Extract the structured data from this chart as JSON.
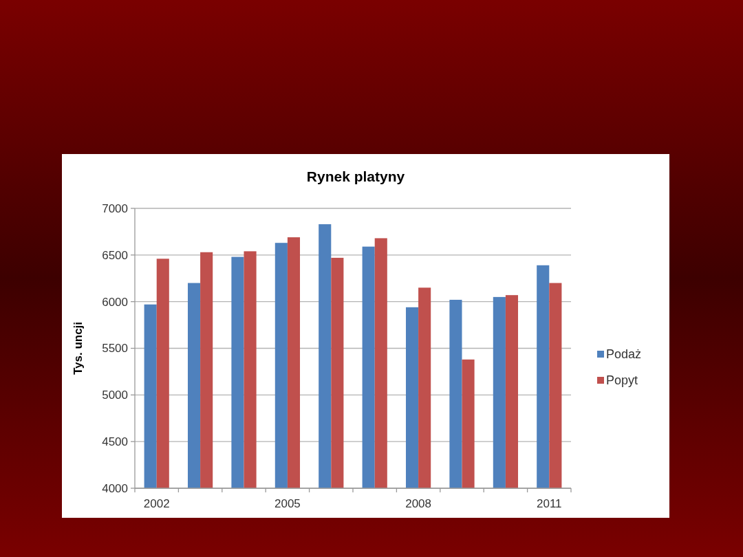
{
  "chart_data": {
    "type": "bar",
    "title": "Rynek platyny",
    "ylabel": "Tys. uncji",
    "categories": [
      "2002",
      null,
      null,
      "2005",
      null,
      null,
      "2008",
      null,
      null,
      "2011"
    ],
    "series": [
      {
        "name": "Podaż",
        "color": "#4f81bd",
        "values": [
          5970,
          6200,
          6480,
          6630,
          6830,
          6590,
          5940,
          6020,
          6050,
          6390
        ]
      },
      {
        "name": "Popyt",
        "color": "#c0504d",
        "values": [
          6460,
          6530,
          6540,
          6690,
          6470,
          6680,
          6150,
          5380,
          6070,
          6200
        ]
      }
    ],
    "ylim": [
      4000,
      7000
    ],
    "yticks": [
      4000,
      4500,
      5000,
      5500,
      6000,
      6500,
      7000
    ],
    "grid": "y",
    "legend": "right"
  }
}
